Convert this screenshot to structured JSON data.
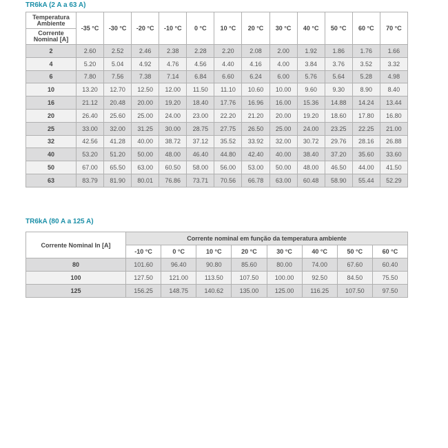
{
  "table1": {
    "title": "TR6kA (2 A a 63 A)",
    "corner_top": "Temperatura Ambiente",
    "corner_bottom": "Corrente Nominal [A]",
    "columns": [
      "-35 °C",
      "-30 °C",
      "-20 °C",
      "-10 °C",
      "0 °C",
      "10 °C",
      "20 °C",
      "30 °C",
      "40 °C",
      "50 °C",
      "60 °C",
      "70 °C"
    ],
    "rows": [
      {
        "label": "2",
        "values": [
          "2.60",
          "2.52",
          "2.46",
          "2.38",
          "2.28",
          "2.20",
          "2.08",
          "2.00",
          "1.92",
          "1.86",
          "1.76",
          "1.66"
        ]
      },
      {
        "label": "4",
        "values": [
          "5.20",
          "5.04",
          "4.92",
          "4.76",
          "4.56",
          "4.40",
          "4.16",
          "4.00",
          "3.84",
          "3.76",
          "3.52",
          "3.32"
        ]
      },
      {
        "label": "6",
        "values": [
          "7.80",
          "7.56",
          "7.38",
          "7.14",
          "6.84",
          "6.60",
          "6.24",
          "6.00",
          "5.76",
          "5.64",
          "5.28",
          "4.98"
        ]
      },
      {
        "label": "10",
        "values": [
          "13.20",
          "12.70",
          "12.50",
          "12.00",
          "11.50",
          "11.10",
          "10.60",
          "10.00",
          "9.60",
          "9.30",
          "8.90",
          "8.40"
        ]
      },
      {
        "label": "16",
        "values": [
          "21.12",
          "20.48",
          "20.00",
          "19.20",
          "18.40",
          "17.76",
          "16.96",
          "16.00",
          "15.36",
          "14.88",
          "14.24",
          "13.44"
        ]
      },
      {
        "label": "20",
        "values": [
          "26.40",
          "25.60",
          "25.00",
          "24.00",
          "23.00",
          "22.20",
          "21.20",
          "20.00",
          "19.20",
          "18.60",
          "17.80",
          "16.80"
        ]
      },
      {
        "label": "25",
        "values": [
          "33.00",
          "32.00",
          "31.25",
          "30.00",
          "28.75",
          "27.75",
          "26.50",
          "25.00",
          "24.00",
          "23.25",
          "22.25",
          "21.00"
        ]
      },
      {
        "label": "32",
        "values": [
          "42.56",
          "41.28",
          "40.00",
          "38.72",
          "37.12",
          "35.52",
          "33.92",
          "32.00",
          "30.72",
          "29.76",
          "28.16",
          "26.88"
        ]
      },
      {
        "label": "40",
        "values": [
          "53.20",
          "51.20",
          "50.00",
          "48.00",
          "46.40",
          "44.80",
          "42.40",
          "40.00",
          "38.40",
          "37.20",
          "35.60",
          "33.60"
        ]
      },
      {
        "label": "50",
        "values": [
          "67.00",
          "65.50",
          "63.00",
          "60.50",
          "58.00",
          "56.00",
          "53.00",
          "50.00",
          "48.00",
          "46.50",
          "44.00",
          "41.50"
        ]
      },
      {
        "label": "63",
        "values": [
          "83.79",
          "81.90",
          "80.01",
          "76.86",
          "73.71",
          "70.56",
          "66.78",
          "63.00",
          "60.48",
          "58.90",
          "55.44",
          "52.29"
        ]
      }
    ]
  },
  "table2": {
    "title": "TR6kA (80 A a 125 A)",
    "corner": "Corrente Nominal In [A]",
    "group_header": "Corrente nominal em função da temperatura ambiente",
    "columns": [
      "-10 °C",
      "0 °C",
      "10 °C",
      "20 °C",
      "30 °C",
      "40 °C",
      "50 °C",
      "60 °C"
    ],
    "rows": [
      {
        "label": "80",
        "values": [
          "101.60",
          "96.40",
          "90.80",
          "85.60",
          "80.00",
          "74.00",
          "67.60",
          "60.40"
        ]
      },
      {
        "label": "100",
        "values": [
          "127.50",
          "121.00",
          "113.50",
          "107.50",
          "100.00",
          "92.50",
          "84.50",
          "75.50"
        ]
      },
      {
        "label": "125",
        "values": [
          "156.25",
          "148.75",
          "140.62",
          "135.00",
          "125.00",
          "116.25",
          "107.50",
          "97.50"
        ]
      }
    ]
  },
  "colors": {
    "title": "#1b8fa8",
    "row_dark": "#dcdcdd",
    "row_light": "#f1f1f1"
  }
}
